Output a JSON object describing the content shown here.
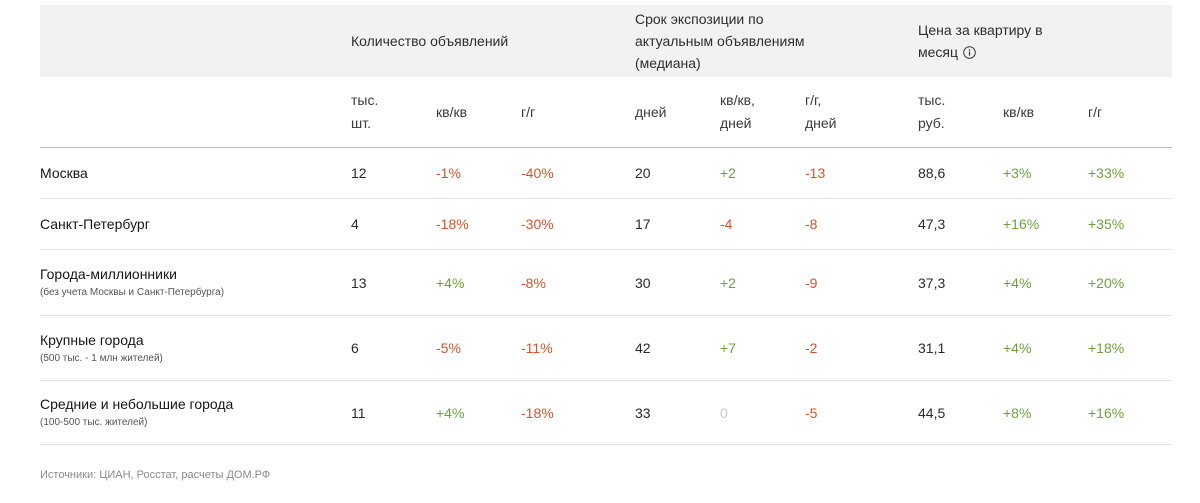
{
  "header": {
    "groups": [
      {
        "label": "Количество объявлений"
      },
      {
        "label": "Срок экспозиции по\nактуальным объявлениям\n(медиана)"
      },
      {
        "label": "Цена за квартиру в\nмесяц",
        "icon": "info-icon"
      }
    ],
    "subheaders": [
      "тыс.\nшт.",
      "кв/кв",
      "г/г",
      "дней",
      "кв/кв,\nдней",
      "г/г,\nдней",
      "тыс.\nруб.",
      "кв/кв",
      "г/г"
    ]
  },
  "rows": [
    {
      "name": "Москва",
      "cells": [
        {
          "value": "12",
          "tone": "neutral"
        },
        {
          "value": "-1%",
          "tone": "negative"
        },
        {
          "value": "-40%",
          "tone": "negative"
        },
        {
          "value": "20",
          "tone": "neutral"
        },
        {
          "value": "+2",
          "tone": "positive"
        },
        {
          "value": "-13",
          "tone": "negative"
        },
        {
          "value": "88,6",
          "tone": "neutral"
        },
        {
          "value": "+3%",
          "tone": "positive"
        },
        {
          "value": "+33%",
          "tone": "positive"
        }
      ]
    },
    {
      "name": "Санкт-Петербург",
      "cells": [
        {
          "value": "4",
          "tone": "neutral"
        },
        {
          "value": "-18%",
          "tone": "negative"
        },
        {
          "value": "-30%",
          "tone": "negative"
        },
        {
          "value": "17",
          "tone": "neutral"
        },
        {
          "value": "-4",
          "tone": "negative"
        },
        {
          "value": "-8",
          "tone": "negative"
        },
        {
          "value": "47,3",
          "tone": "neutral"
        },
        {
          "value": "+16%",
          "tone": "positive"
        },
        {
          "value": "+35%",
          "tone": "positive"
        }
      ]
    },
    {
      "name": "Города-миллионники",
      "note": "(без учета Москвы и Санкт-Петербурга)",
      "cells": [
        {
          "value": "13",
          "tone": "neutral"
        },
        {
          "value": "+4%",
          "tone": "positive"
        },
        {
          "value": "-8%",
          "tone": "negative"
        },
        {
          "value": "30",
          "tone": "neutral"
        },
        {
          "value": "+2",
          "tone": "positive"
        },
        {
          "value": "-9",
          "tone": "negative"
        },
        {
          "value": "37,3",
          "tone": "neutral"
        },
        {
          "value": "+4%",
          "tone": "positive"
        },
        {
          "value": "+20%",
          "tone": "positive"
        }
      ]
    },
    {
      "name": "Крупные города",
      "note": "(500 тыс. - 1 млн жителей)",
      "cells": [
        {
          "value": "6",
          "tone": "neutral"
        },
        {
          "value": "-5%",
          "tone": "negative"
        },
        {
          "value": "-11%",
          "tone": "negative"
        },
        {
          "value": "42",
          "tone": "neutral"
        },
        {
          "value": "+7",
          "tone": "positive"
        },
        {
          "value": "-2",
          "tone": "negative"
        },
        {
          "value": "31,1",
          "tone": "neutral"
        },
        {
          "value": "+4%",
          "tone": "positive"
        },
        {
          "value": "+18%",
          "tone": "positive"
        }
      ]
    },
    {
      "name": "Средние и небольшие города",
      "note": "(100-500 тыс. жителей)",
      "cells": [
        {
          "value": "11",
          "tone": "neutral"
        },
        {
          "value": "+4%",
          "tone": "positive"
        },
        {
          "value": "-18%",
          "tone": "negative"
        },
        {
          "value": "33",
          "tone": "neutral"
        },
        {
          "value": "0",
          "tone": "muted"
        },
        {
          "value": "-5",
          "tone": "negative"
        },
        {
          "value": "44,5",
          "tone": "neutral"
        },
        {
          "value": "+8%",
          "tone": "positive"
        },
        {
          "value": "+16%",
          "tone": "positive"
        }
      ]
    }
  ],
  "footer": {
    "source": "Источники: ЦИАН, Росстат, расчеты ДОМ.РФ"
  },
  "colors": {
    "neutral": "#2b2b2b",
    "negative": "#d4532b",
    "positive": "#6ca23c",
    "muted": "#c9c9c9"
  }
}
